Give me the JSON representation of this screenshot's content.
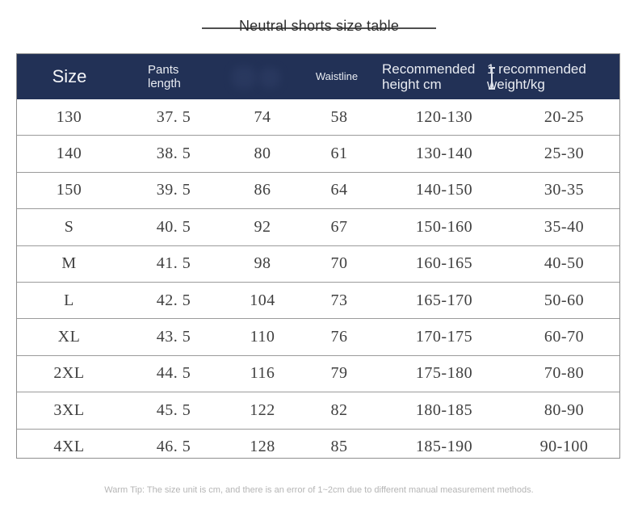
{
  "title": {
    "text": "Neutral shorts size table"
  },
  "table": {
    "headers": {
      "size": "Size",
      "pants_length": "Pants\nlength",
      "blurred": "",
      "waistline": "Waistline",
      "recommended_height": "Recommended\nheight cm",
      "recommended_weight": "1 recommended\nweight/kg"
    },
    "columns": [
      "Size",
      "Pants length",
      "",
      "Waistline",
      "Recommended height cm",
      "1 recommended weight/kg"
    ],
    "rows": [
      [
        "130",
        "37. 5",
        "74",
        "58",
        "120-130",
        "20-25"
      ],
      [
        "140",
        "38. 5",
        "80",
        "61",
        "130-140",
        "25-30"
      ],
      [
        "150",
        "39. 5",
        "86",
        "64",
        "140-150",
        "30-35"
      ],
      [
        "S",
        "40. 5",
        "92",
        "67",
        "150-160",
        "35-40"
      ],
      [
        "M",
        "41. 5",
        "98",
        "70",
        "160-165",
        "40-50"
      ],
      [
        "L",
        "42. 5",
        "104",
        "73",
        "165-170",
        "50-60"
      ],
      [
        "XL",
        "43. 5",
        "110",
        "76",
        "170-175",
        "60-70"
      ],
      [
        "2XL",
        "44. 5",
        "116",
        "79",
        "175-180",
        "70-80"
      ],
      [
        "3XL",
        "45. 5",
        "122",
        "82",
        "180-185",
        "80-90"
      ],
      [
        "4XL",
        "46. 5",
        "128",
        "85",
        "185-190",
        "90-100"
      ]
    ]
  },
  "footer": {
    "tip": "Warm Tip: The size unit is cm, and there is an error of 1~2cm due to different manual measurement methods."
  },
  "colors": {
    "header_bg": "#223156",
    "header_text": "#e9ecf2",
    "body_text": "#404040",
    "row_line": "#9b9b9b",
    "outer_border": "#8f8f8f",
    "title_line": "#4f4f4f",
    "footer_text": "#b5b5b5"
  }
}
